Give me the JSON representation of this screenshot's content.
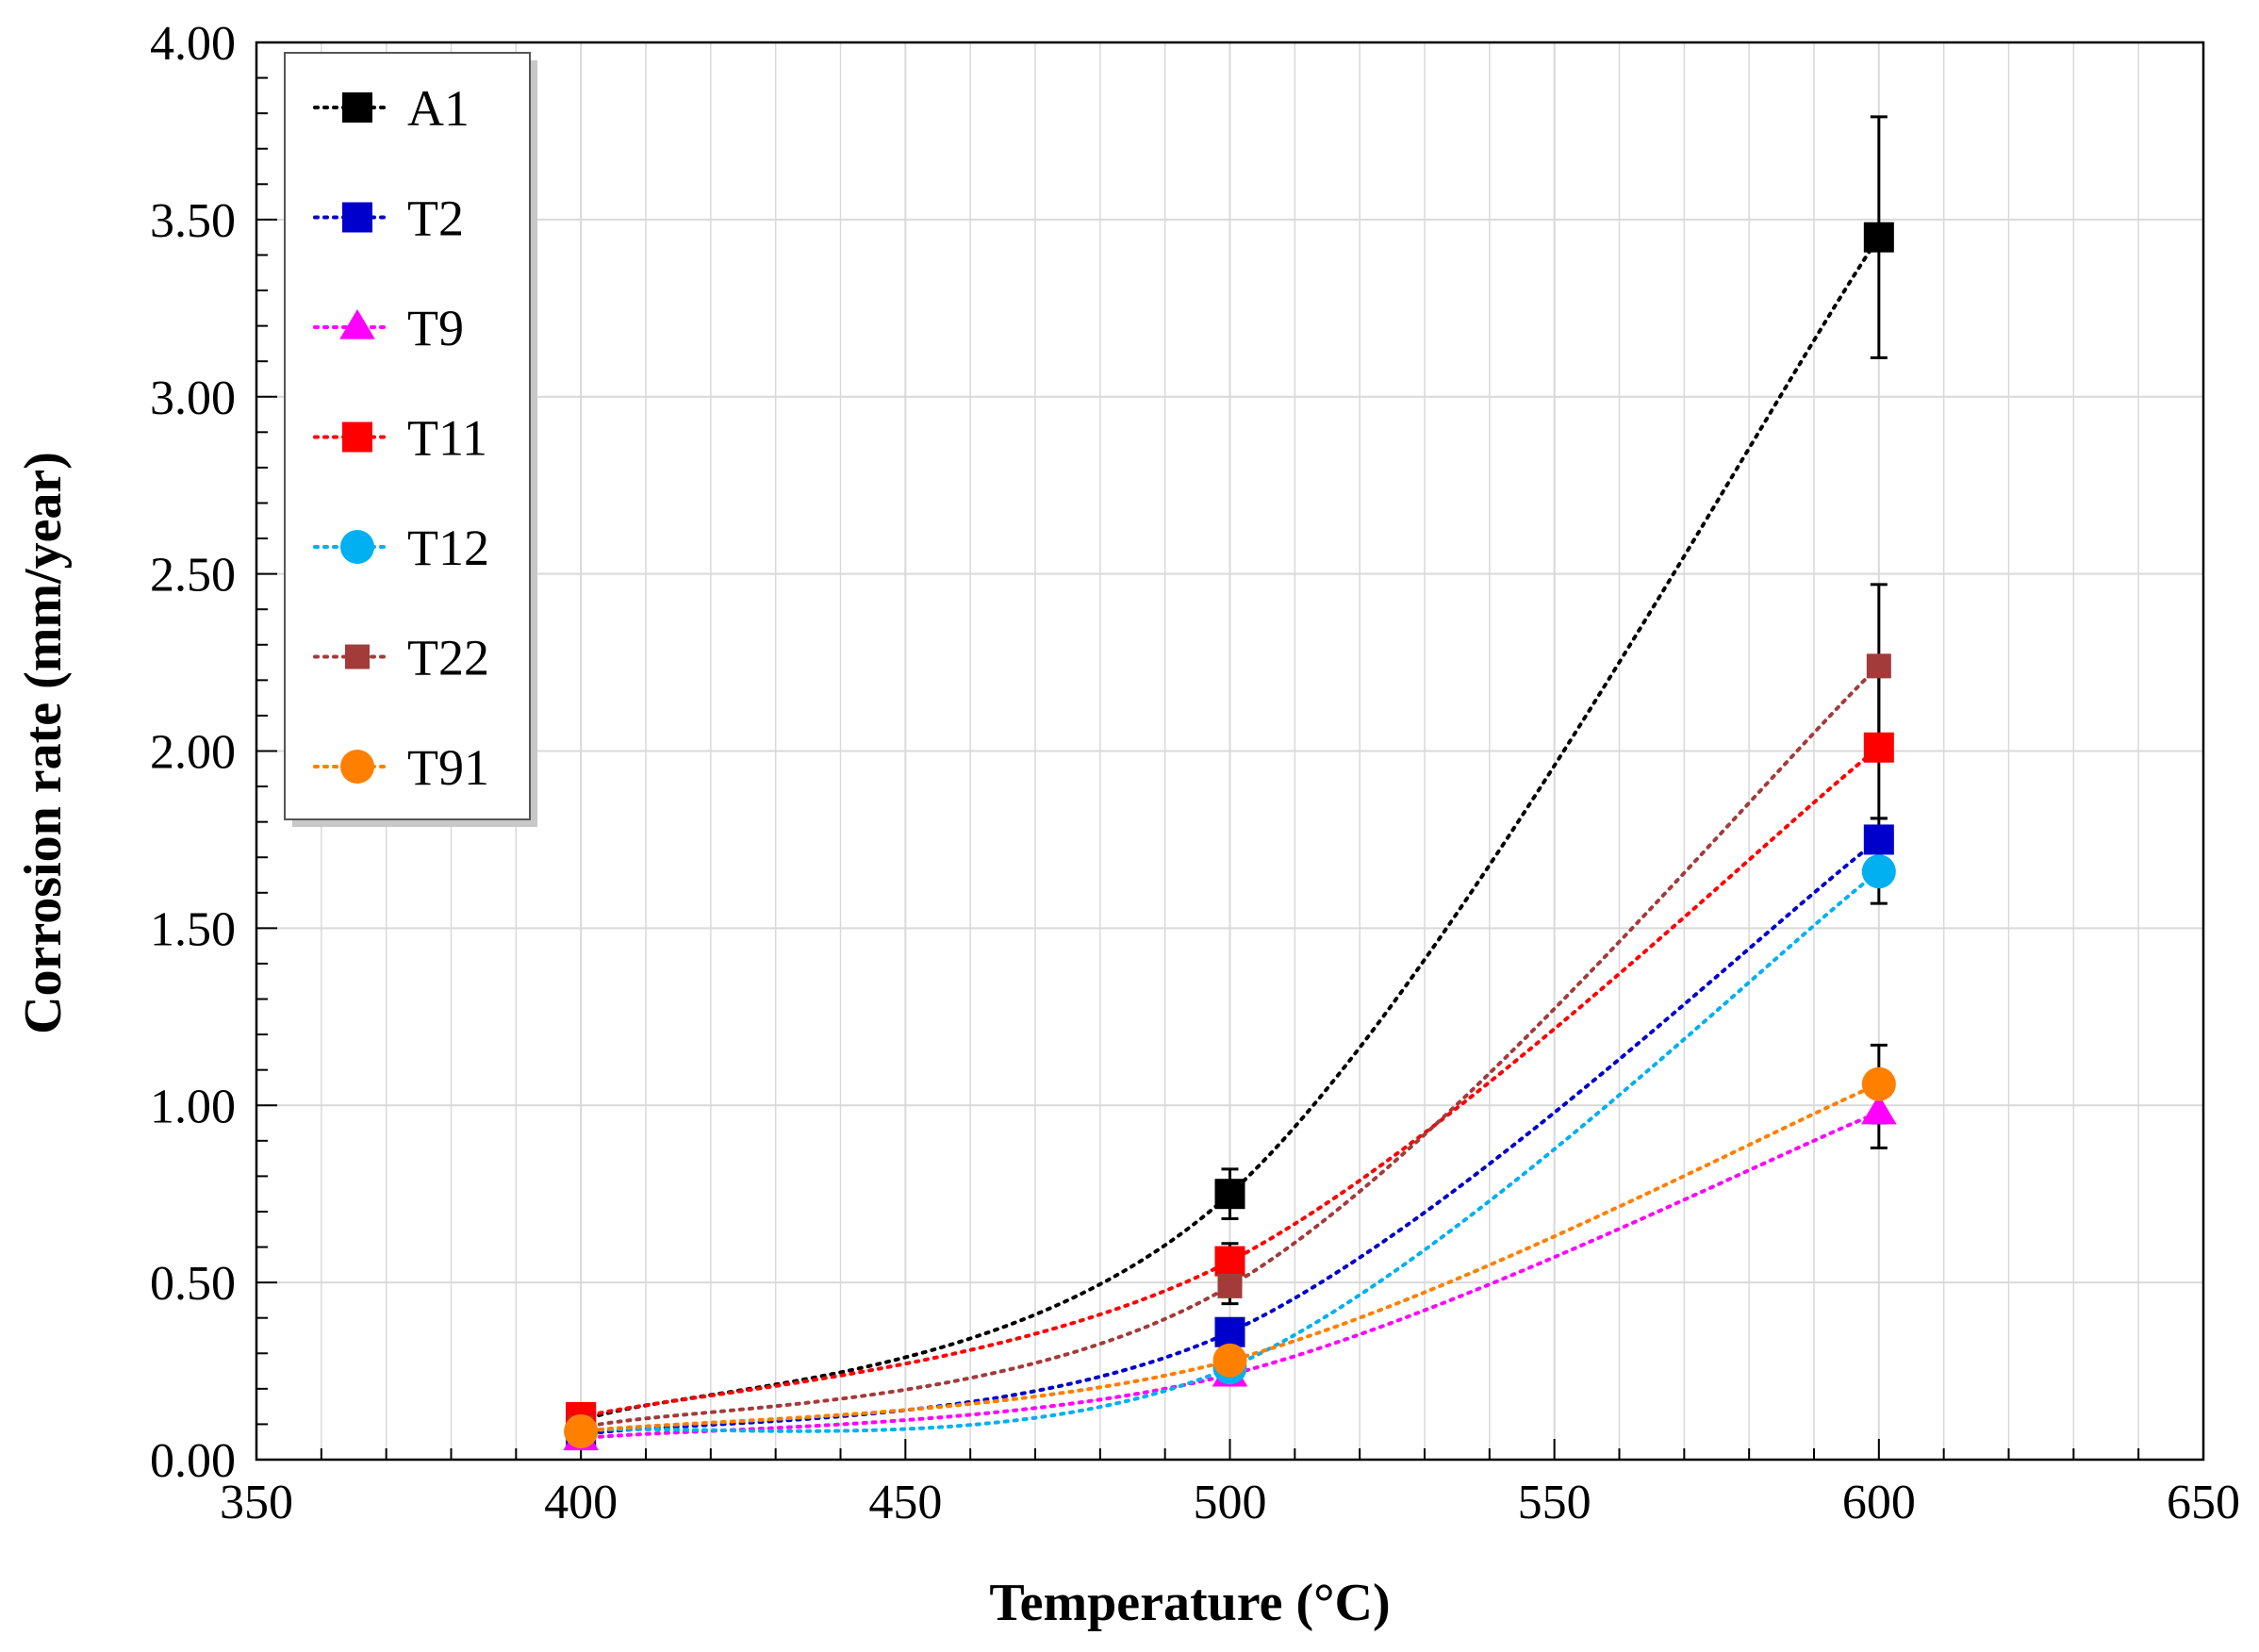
{
  "chart_data": {
    "type": "line",
    "title": "",
    "xlabel": "Temperature (°C)",
    "ylabel": "Corrosion rate (mm/year)",
    "xlim": [
      350,
      650
    ],
    "ylim": [
      0,
      4
    ],
    "x_ticks": [
      "350",
      "400",
      "450",
      "500",
      "550",
      "600",
      "650"
    ],
    "y_ticks": [
      "0.00",
      "0.50",
      "1.00",
      "1.50",
      "2.00",
      "2.50",
      "3.00",
      "3.50",
      "4.00"
    ],
    "grid": true,
    "legend_position": "top-left",
    "line_style": "dotted",
    "x": [
      400,
      500,
      600
    ],
    "series": [
      {
        "name": "A1",
        "color": "#000000",
        "marker": "square",
        "values": [
          0.11,
          0.75,
          3.45
        ],
        "errors": [
          null,
          0.07,
          0.34
        ]
      },
      {
        "name": "T2",
        "color": "#0000CC",
        "marker": "square",
        "values": [
          0.07,
          0.36,
          1.75
        ],
        "errors": [
          null,
          null,
          0.06
        ]
      },
      {
        "name": "T9",
        "color": "#FF00FF",
        "marker": "triangle",
        "values": [
          0.06,
          0.24,
          0.98
        ],
        "errors": [
          null,
          null,
          0.1
        ]
      },
      {
        "name": "T11",
        "color": "#FF0000",
        "marker": "square",
        "values": [
          0.12,
          0.56,
          2.01
        ],
        "errors": [
          null,
          0.05,
          0.2
        ]
      },
      {
        "name": "T12",
        "color": "#00B0F0",
        "marker": "circle",
        "values": [
          0.08,
          0.26,
          1.66
        ],
        "errors": [
          null,
          null,
          0.09
        ]
      },
      {
        "name": "T22",
        "color": "#A33B3B",
        "marker": "square",
        "values": [
          0.09,
          0.49,
          2.24
        ],
        "errors": [
          null,
          0.05,
          0.23
        ]
      },
      {
        "name": "T91",
        "color": "#FF7F00",
        "marker": "circle",
        "values": [
          0.08,
          0.28,
          1.06
        ],
        "errors": [
          null,
          null,
          0.11
        ]
      }
    ]
  }
}
